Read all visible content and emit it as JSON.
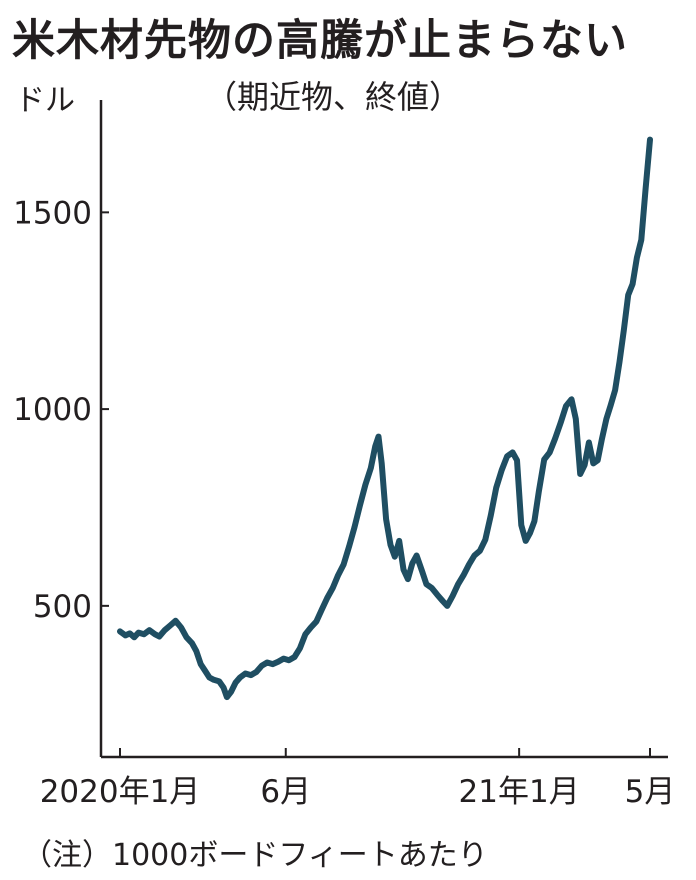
{
  "title": "米木材先物の高騰が止まらない",
  "subtitle": "（期近物、終値）",
  "note": "（注）1000ボードフィートあたり",
  "chart_data": {
    "type": "line",
    "ylabel": "ドル",
    "ylim": [
      170,
      1730
    ],
    "y_ticks": [
      500,
      1000,
      1500
    ],
    "x_ticks": [
      {
        "label": "2020年1月",
        "date": "2020-01-01"
      },
      {
        "label": "6月",
        "date": "2020-06-01"
      },
      {
        "label": "21年1月",
        "date": "2021-01-01"
      },
      {
        "label": "5月",
        "date": "2021-05-01"
      }
    ],
    "line_color": "#1f4e62",
    "series": [
      {
        "points": [
          [
            "2020-01-01",
            435
          ],
          [
            "2020-01-06",
            425
          ],
          [
            "2020-01-10",
            430
          ],
          [
            "2020-01-14",
            420
          ],
          [
            "2020-01-18",
            432
          ],
          [
            "2020-01-23",
            428
          ],
          [
            "2020-01-28",
            438
          ],
          [
            "2020-02-02",
            428
          ],
          [
            "2020-02-06",
            422
          ],
          [
            "2020-02-11",
            438
          ],
          [
            "2020-02-16",
            450
          ],
          [
            "2020-02-21",
            462
          ],
          [
            "2020-02-26",
            445
          ],
          [
            "2020-03-02",
            420
          ],
          [
            "2020-03-07",
            405
          ],
          [
            "2020-03-11",
            385
          ],
          [
            "2020-03-15",
            352
          ],
          [
            "2020-03-19",
            335
          ],
          [
            "2020-03-23",
            318
          ],
          [
            "2020-03-27",
            312
          ],
          [
            "2020-04-01",
            308
          ],
          [
            "2020-04-05",
            292
          ],
          [
            "2020-04-08",
            268
          ],
          [
            "2020-04-12",
            282
          ],
          [
            "2020-04-16",
            305
          ],
          [
            "2020-04-20",
            318
          ],
          [
            "2020-04-25",
            328
          ],
          [
            "2020-04-30",
            324
          ],
          [
            "2020-05-05",
            332
          ],
          [
            "2020-05-10",
            348
          ],
          [
            "2020-05-15",
            356
          ],
          [
            "2020-05-20",
            352
          ],
          [
            "2020-05-25",
            358
          ],
          [
            "2020-05-30",
            366
          ],
          [
            "2020-06-04",
            362
          ],
          [
            "2020-06-09",
            370
          ],
          [
            "2020-06-14",
            392
          ],
          [
            "2020-06-19",
            428
          ],
          [
            "2020-06-24",
            445
          ],
          [
            "2020-06-29",
            460
          ],
          [
            "2020-07-04",
            490
          ],
          [
            "2020-07-09",
            520
          ],
          [
            "2020-07-14",
            545
          ],
          [
            "2020-07-19",
            578
          ],
          [
            "2020-07-24",
            605
          ],
          [
            "2020-07-29",
            650
          ],
          [
            "2020-08-03",
            700
          ],
          [
            "2020-08-08",
            755
          ],
          [
            "2020-08-13",
            808
          ],
          [
            "2020-08-18",
            850
          ],
          [
            "2020-08-22",
            905
          ],
          [
            "2020-08-25",
            930
          ],
          [
            "2020-08-28",
            862
          ],
          [
            "2020-09-01",
            720
          ],
          [
            "2020-09-05",
            655
          ],
          [
            "2020-09-09",
            625
          ],
          [
            "2020-09-13",
            665
          ],
          [
            "2020-09-17",
            592
          ],
          [
            "2020-09-21",
            568
          ],
          [
            "2020-09-25",
            608
          ],
          [
            "2020-09-29",
            628
          ],
          [
            "2020-10-04",
            588
          ],
          [
            "2020-10-08",
            555
          ],
          [
            "2020-10-13",
            545
          ],
          [
            "2020-10-18",
            528
          ],
          [
            "2020-10-23",
            512
          ],
          [
            "2020-10-27",
            500
          ],
          [
            "2020-11-01",
            525
          ],
          [
            "2020-11-06",
            555
          ],
          [
            "2020-11-11",
            578
          ],
          [
            "2020-11-16",
            605
          ],
          [
            "2020-11-21",
            628
          ],
          [
            "2020-11-26",
            640
          ],
          [
            "2020-12-01",
            668
          ],
          [
            "2020-12-06",
            730
          ],
          [
            "2020-12-11",
            800
          ],
          [
            "2020-12-16",
            845
          ],
          [
            "2020-12-21",
            880
          ],
          [
            "2020-12-26",
            890
          ],
          [
            "2020-12-30",
            870
          ],
          [
            "2021-01-03",
            705
          ],
          [
            "2021-01-07",
            665
          ],
          [
            "2021-01-11",
            685
          ],
          [
            "2021-01-15",
            715
          ],
          [
            "2021-01-19",
            790
          ],
          [
            "2021-01-24",
            872
          ],
          [
            "2021-01-29",
            890
          ],
          [
            "2021-02-03",
            925
          ],
          [
            "2021-02-08",
            965
          ],
          [
            "2021-02-13",
            1008
          ],
          [
            "2021-02-18",
            1025
          ],
          [
            "2021-02-22",
            975
          ],
          [
            "2021-02-26",
            835
          ],
          [
            "2021-03-02",
            858
          ],
          [
            "2021-03-06",
            915
          ],
          [
            "2021-03-10",
            862
          ],
          [
            "2021-03-14",
            870
          ],
          [
            "2021-03-18",
            925
          ],
          [
            "2021-03-22",
            975
          ],
          [
            "2021-03-26",
            1010
          ],
          [
            "2021-03-30",
            1048
          ],
          [
            "2021-04-03",
            1120
          ],
          [
            "2021-04-07",
            1200
          ],
          [
            "2021-04-11",
            1290
          ],
          [
            "2021-04-15",
            1318
          ],
          [
            "2021-04-19",
            1385
          ],
          [
            "2021-04-23",
            1430
          ],
          [
            "2021-04-27",
            1560
          ],
          [
            "2021-05-01",
            1685
          ]
        ]
      }
    ]
  }
}
